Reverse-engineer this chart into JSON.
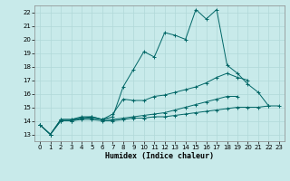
{
  "xlabel": "Humidex (Indice chaleur)",
  "ylabel": "",
  "xlim": [
    -0.5,
    23.5
  ],
  "ylim": [
    12.5,
    22.5
  ],
  "xticks": [
    0,
    1,
    2,
    3,
    4,
    5,
    6,
    7,
    8,
    9,
    10,
    11,
    12,
    13,
    14,
    15,
    16,
    17,
    18,
    19,
    20,
    21,
    22,
    23
  ],
  "yticks": [
    13,
    14,
    15,
    16,
    17,
    18,
    19,
    20,
    21,
    22
  ],
  "bg_color": "#c8eaea",
  "grid_color": "#b0d8d8",
  "line_color": "#006666",
  "series": [
    {
      "x": [
        0,
        1,
        2,
        3,
        4,
        5,
        6,
        7,
        8,
        9,
        10,
        11,
        12,
        13,
        14,
        15,
        16,
        17,
        18,
        19,
        20,
        21,
        22
      ],
      "y": [
        13.7,
        13.0,
        14.1,
        14.1,
        14.2,
        14.3,
        14.1,
        14.3,
        16.5,
        17.8,
        19.1,
        18.7,
        20.5,
        20.3,
        20.0,
        22.2,
        21.5,
        22.2,
        18.1,
        17.5,
        16.7,
        16.1,
        15.1
      ]
    },
    {
      "x": [
        0,
        1,
        2,
        3,
        4,
        5,
        6,
        7,
        8,
        9,
        10,
        11,
        12,
        13,
        14,
        15,
        16,
        17,
        18,
        19,
        20
      ],
      "y": [
        13.7,
        13.0,
        14.1,
        14.1,
        14.3,
        14.3,
        14.1,
        14.5,
        15.6,
        15.5,
        15.5,
        15.8,
        15.9,
        16.1,
        16.3,
        16.5,
        16.8,
        17.2,
        17.5,
        17.2,
        17.0
      ]
    },
    {
      "x": [
        0,
        1,
        2,
        3,
        4,
        5,
        6,
        7,
        8,
        9,
        10,
        11,
        12,
        13,
        14,
        15,
        16,
        17,
        18,
        19
      ],
      "y": [
        13.7,
        13.0,
        14.0,
        14.0,
        14.2,
        14.2,
        14.1,
        14.1,
        14.2,
        14.3,
        14.4,
        14.5,
        14.6,
        14.8,
        15.0,
        15.2,
        15.4,
        15.6,
        15.8,
        15.8
      ]
    },
    {
      "x": [
        0,
        1,
        2,
        3,
        4,
        5,
        6,
        7,
        8,
        9,
        10,
        11,
        12,
        13,
        14,
        15,
        16,
        17,
        18,
        19,
        20,
        21,
        22,
        23
      ],
      "y": [
        13.7,
        13.0,
        14.0,
        14.0,
        14.1,
        14.1,
        14.0,
        14.0,
        14.1,
        14.2,
        14.2,
        14.3,
        14.3,
        14.4,
        14.5,
        14.6,
        14.7,
        14.8,
        14.9,
        15.0,
        15.0,
        15.0,
        15.1,
        15.1
      ]
    }
  ]
}
